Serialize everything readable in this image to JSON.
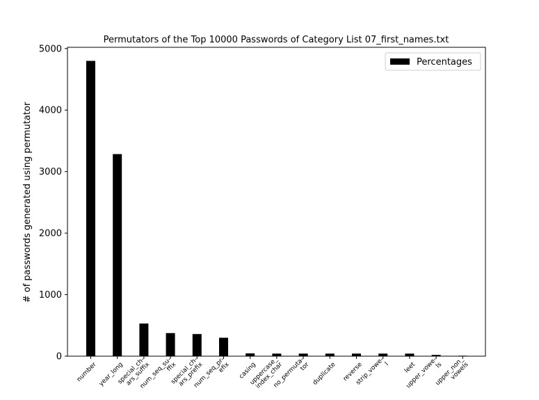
{
  "chart_data": {
    "type": "bar",
    "title": "Permutators of the Top 10000 Passwords of Category List 07_first_names.txt",
    "xlabel": "",
    "ylabel": "# of passwords generated using permutator",
    "ylim": [
      0,
      5020
    ],
    "yticks": [
      0,
      1000,
      2000,
      3000,
      4000,
      5000
    ],
    "legend_position": "top-right",
    "grid": false,
    "bar_color": "#000000",
    "categories": [
      [
        "number"
      ],
      [
        "year_long"
      ],
      [
        "special_ch-",
        "ars_suffix"
      ],
      [
        "num_seq_su-",
        "ffix"
      ],
      [
        "special_ch-",
        "ars_prefix"
      ],
      [
        "num_seq_pr-",
        "efix"
      ],
      [
        "casing"
      ],
      [
        "uppercase_",
        "index_char"
      ],
      [
        "no_permuta-",
        "tor"
      ],
      [
        "duplicate"
      ],
      [
        "reverse"
      ],
      [
        "strip_vowe-",
        "l"
      ],
      [
        "leet"
      ],
      [
        "upper_vowe-",
        "ls"
      ],
      [
        "upper_non_",
        "vowels"
      ]
    ],
    "series": [
      {
        "name": "Percentages",
        "values": [
          4800,
          3285,
          530,
          375,
          360,
          300,
          45,
          42,
          42,
          42,
          42,
          42,
          42,
          20,
          8
        ]
      }
    ]
  }
}
